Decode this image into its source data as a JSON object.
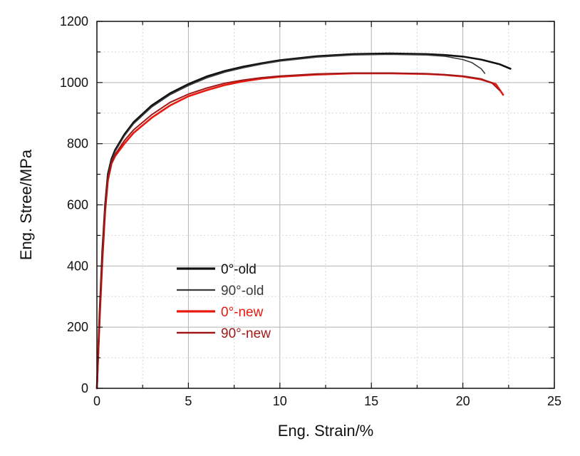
{
  "chart_data": {
    "type": "line",
    "title": "",
    "xlabel": "Eng. Strain/%",
    "ylabel": "Eng. Stree/MPa",
    "xlim": [
      0,
      25
    ],
    "ylim": [
      0,
      1200
    ],
    "xticks": [
      0,
      5,
      10,
      15,
      20,
      25
    ],
    "yticks": [
      0,
      200,
      400,
      600,
      800,
      1000,
      1200
    ],
    "grid": true,
    "legend_position": "left-lower",
    "series": [
      {
        "name": "0°-old",
        "color": "#111111",
        "x": [
          0,
          0.15,
          0.3,
          0.45,
          0.6,
          0.8,
          1,
          1.5,
          2,
          3,
          4,
          5,
          6,
          7,
          8,
          9,
          10,
          12,
          14,
          16,
          18,
          19,
          20,
          21,
          22,
          22.6
        ],
        "y": [
          0,
          250,
          450,
          600,
          700,
          750,
          780,
          830,
          870,
          925,
          965,
          995,
          1020,
          1038,
          1052,
          1063,
          1073,
          1086,
          1093,
          1095,
          1093,
          1090,
          1085,
          1075,
          1060,
          1045
        ]
      },
      {
        "name": "90°-old",
        "color": "#3a3a3a",
        "x": [
          0,
          0.15,
          0.3,
          0.45,
          0.6,
          0.8,
          1,
          1.5,
          2,
          3,
          4,
          5,
          6,
          7,
          8,
          9,
          10,
          12,
          14,
          16,
          18,
          19,
          20,
          20.5,
          21,
          21.2
        ],
        "y": [
          0,
          240,
          440,
          595,
          695,
          745,
          775,
          825,
          865,
          920,
          960,
          990,
          1015,
          1034,
          1048,
          1060,
          1070,
          1083,
          1090,
          1092,
          1090,
          1086,
          1075,
          1065,
          1045,
          1030
        ]
      },
      {
        "name": "0°-new",
        "color": "#e8190f",
        "x": [
          0,
          0.15,
          0.3,
          0.45,
          0.6,
          0.8,
          1,
          1.5,
          2,
          3,
          4,
          5,
          6,
          7,
          8,
          9,
          10,
          12,
          14,
          16,
          18,
          19,
          20,
          21,
          21.8,
          22.2
        ],
        "y": [
          0,
          230,
          420,
          580,
          680,
          735,
          760,
          800,
          835,
          885,
          925,
          955,
          975,
          992,
          1004,
          1013,
          1019,
          1026,
          1030,
          1030,
          1028,
          1025,
          1020,
          1010,
          995,
          960
        ]
      },
      {
        "name": "90°-new",
        "color": "#a01818",
        "x": [
          0,
          0.15,
          0.3,
          0.45,
          0.6,
          0.8,
          1,
          1.5,
          2,
          3,
          4,
          5,
          6,
          7,
          8,
          9,
          10,
          12,
          14,
          16,
          18,
          19,
          20,
          21,
          21.6,
          22
        ],
        "y": [
          0,
          235,
          430,
          585,
          685,
          738,
          765,
          810,
          845,
          895,
          935,
          962,
          982,
          998,
          1008,
          1016,
          1021,
          1028,
          1031,
          1031,
          1029,
          1026,
          1021,
          1012,
          998,
          975
        ]
      }
    ]
  }
}
